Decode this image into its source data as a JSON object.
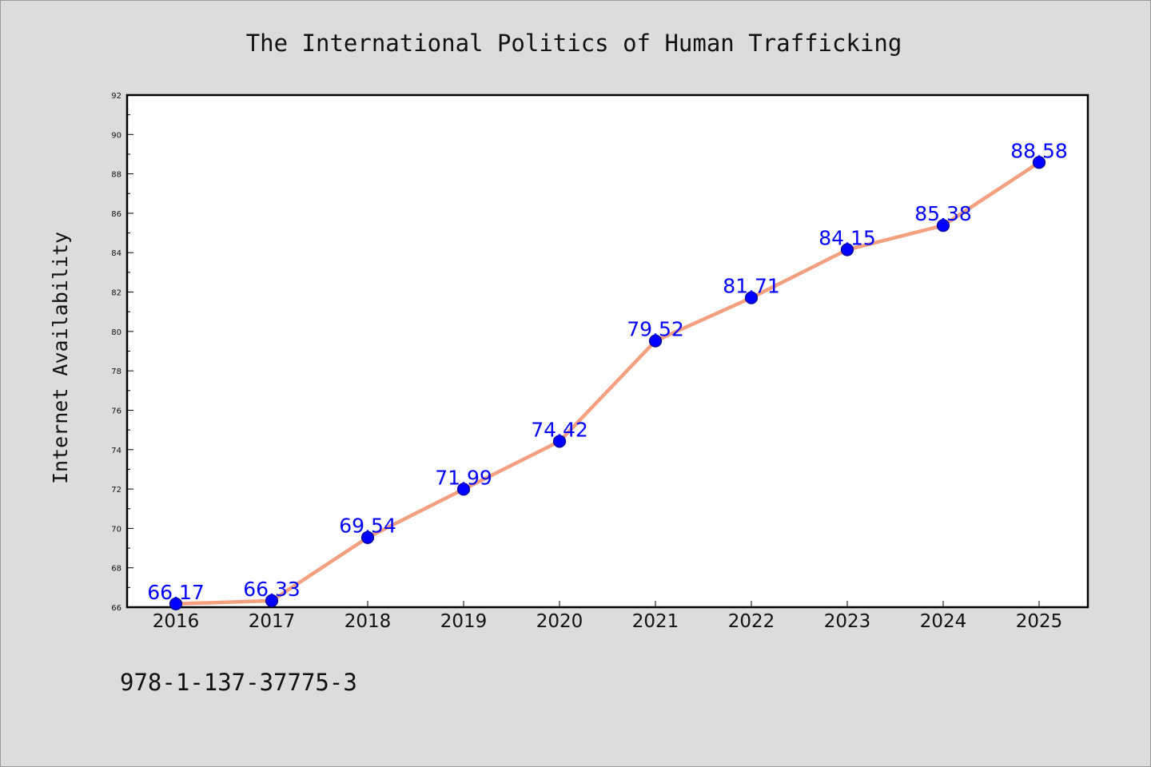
{
  "chart_data": {
    "type": "line",
    "title": "The International Politics of Human Trafficking",
    "ylabel": "Internet Availability",
    "xlabel": "",
    "categories": [
      "2016",
      "2017",
      "2018",
      "2019",
      "2020",
      "2021",
      "2022",
      "2023",
      "2024",
      "2025"
    ],
    "series": [
      {
        "values": [
          66.17,
          66.33,
          69.54,
          71.99,
          74.42,
          79.52,
          81.71,
          84.15,
          85.38,
          88.58
        ],
        "labels": [
          "66.17",
          "66.33",
          "69.54",
          "71.99",
          "74.42",
          "79.52",
          "81.71",
          "84.15",
          "85.38",
          "88.58"
        ]
      }
    ],
    "ylim": [
      66,
      92
    ],
    "yticks": [
      "66",
      "68",
      "70",
      "72",
      "74",
      "76",
      "78",
      "80",
      "82",
      "84",
      "86",
      "88",
      "90",
      "92"
    ],
    "grid": false,
    "legend": "none",
    "colors": {
      "line": "#f4a07e",
      "marker": "#0000ff",
      "marker_edge": "#00008b",
      "data_label": "#0000ff",
      "background": "#dcdcdc",
      "plot_area": "#ffffff"
    }
  },
  "footer": {
    "isbn": "978-1-137-37775-3"
  }
}
